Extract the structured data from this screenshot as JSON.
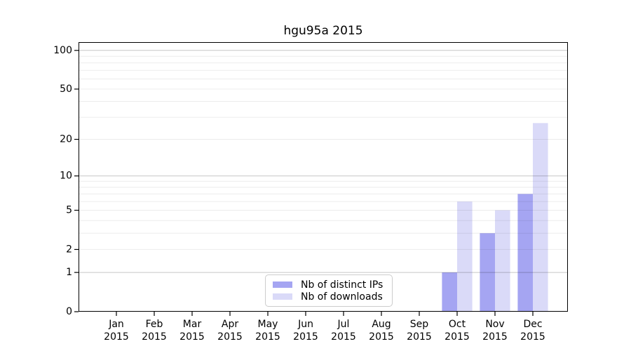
{
  "figure": {
    "background": "#ffffff"
  },
  "chart_data": {
    "type": "bar",
    "title": "hgu95a 2015",
    "categories": [
      "Jan",
      "Feb",
      "Mar",
      "Apr",
      "May",
      "Jun",
      "Jul",
      "Aug",
      "Sep",
      "Oct",
      "Nov",
      "Dec"
    ],
    "year": "2015",
    "series": [
      {
        "name": "Nb of distinct IPs",
        "color": "#a5a5f2",
        "values": [
          0,
          0,
          0,
          0,
          0,
          0,
          0,
          0,
          0,
          1,
          3,
          7
        ]
      },
      {
        "name": "Nb of downloads",
        "color": "#dadaf8",
        "values": [
          0,
          0,
          0,
          0,
          0,
          0,
          0,
          0,
          0,
          6,
          5,
          27
        ]
      }
    ],
    "yticks": [
      0,
      1,
      2,
      5,
      10,
      20,
      50,
      100
    ],
    "ylim": [
      0,
      100
    ],
    "scale": "log1p",
    "grid": {
      "minor_values": [
        2,
        3,
        4,
        5,
        6,
        7,
        8,
        9,
        20,
        30,
        40,
        50,
        60,
        70,
        80,
        90
      ],
      "decade_values": [
        1,
        10,
        100
      ]
    },
    "legend_position": "lower center",
    "axis_color": "#000000",
    "minor_grid_color": "rgba(0,0,0,0.075)",
    "decade_grid_color": "rgba(0,0,0,0.22)"
  }
}
